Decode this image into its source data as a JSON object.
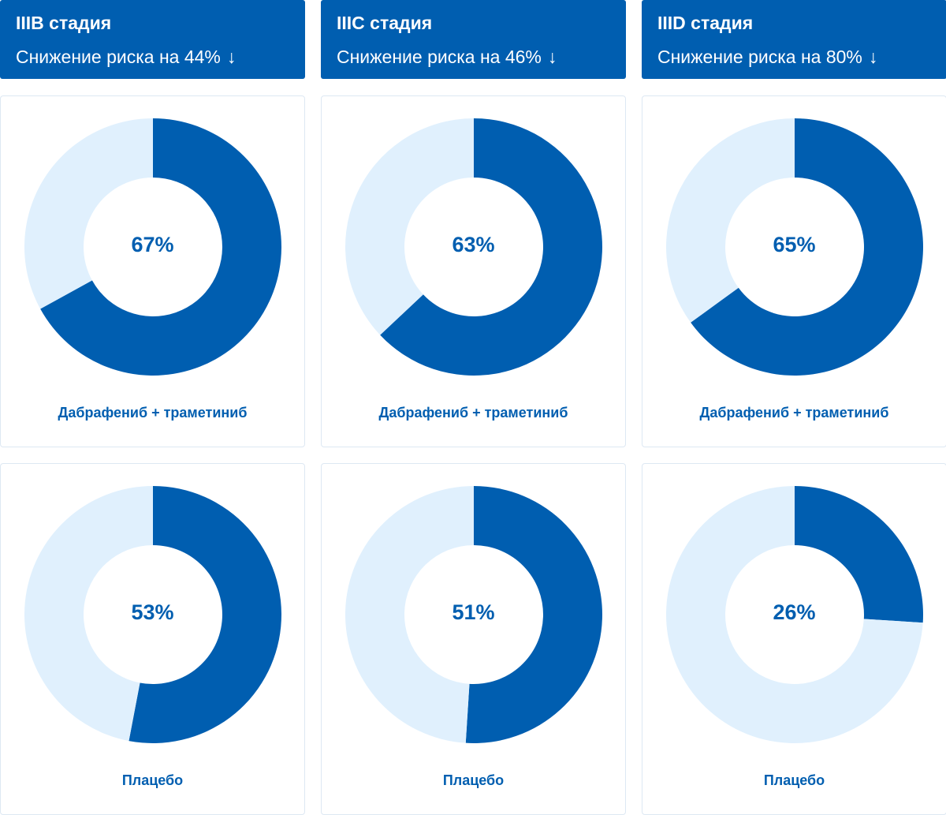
{
  "colors": {
    "primary": "#005eb0",
    "light": "#e0f0fd",
    "card_border": "#dde8f3"
  },
  "stages": [
    {
      "title": "IIIB стадия",
      "reduction_text": "Снижение риска на 44%",
      "arrow": "↓",
      "treatment": {
        "label": "Дабрафениб + траметиниб",
        "value_text": "67%"
      },
      "placebo": {
        "label": "Плацебо",
        "value_text": "53%"
      }
    },
    {
      "title": "IIIC стадия",
      "reduction_text": "Снижение риска на 46%",
      "arrow": "↓",
      "treatment": {
        "label": "Дабрафениб + траметиниб",
        "value_text": "63%"
      },
      "placebo": {
        "label": "Плацебо",
        "value_text": "51%"
      }
    },
    {
      "title": "IIID стадия",
      "reduction_text": "Снижение риска на 80%",
      "arrow": "↓",
      "treatment": {
        "label": "Дабрафениб + траметиниб",
        "value_text": "65%"
      },
      "placebo": {
        "label": "Плацебо",
        "value_text": "26%"
      }
    }
  ],
  "chart_data": [
    {
      "type": "pie",
      "title": "IIIB стадия — Дабрафениб + траметиниб",
      "values": [
        67,
        33
      ]
    },
    {
      "type": "pie",
      "title": "IIIC стадия — Дабрафениб + траметиниб",
      "values": [
        63,
        37
      ]
    },
    {
      "type": "pie",
      "title": "IIID стадия — Дабрафениб + траметиниб",
      "values": [
        65,
        35
      ]
    },
    {
      "type": "pie",
      "title": "IIIB стадия — Плацебо",
      "values": [
        53,
        47
      ]
    },
    {
      "type": "pie",
      "title": "IIIC стадия — Плацебо",
      "values": [
        51,
        49
      ]
    },
    {
      "type": "pie",
      "title": "IIID стадия — Плацебо",
      "values": [
        26,
        74
      ]
    }
  ]
}
